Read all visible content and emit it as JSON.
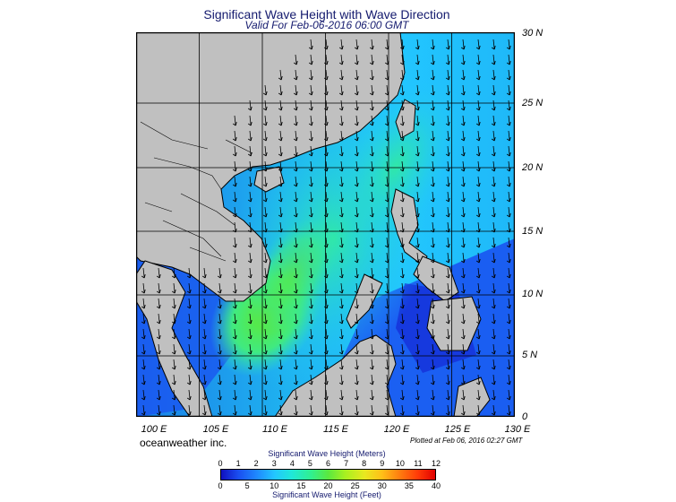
{
  "header": {
    "title": "Significant Wave Height with Wave Direction",
    "subtitle": "Valid For Feb-06-2016 06:00 GMT"
  },
  "map": {
    "lon_range": [
      100,
      130
    ],
    "lat_range": [
      0,
      30
    ],
    "lat_labels": [
      "30 N",
      "25 N",
      "20 N",
      "15 N",
      "10 N",
      "5 N",
      "0"
    ],
    "lon_labels": [
      "100 E",
      "105 E",
      "110 E",
      "115 E",
      "120 E",
      "125 E",
      "130 E"
    ],
    "land_color": "#c0c0c0",
    "wave_direction": "southwest (arrows point from NE toward SW)"
  },
  "footer": {
    "credit": "oceanweather inc.",
    "plotted": "Plotted at Feb 06, 2016 02:27 GMT"
  },
  "legend": {
    "title_top": "Significant Wave Height (Meters)",
    "title_bottom": "Significant Wave Height (Feet)",
    "meters_ticks": [
      "0",
      "1",
      "2",
      "3",
      "4",
      "5",
      "6",
      "7",
      "8",
      "9",
      "10",
      "11",
      "12"
    ],
    "feet_ticks": [
      "0",
      "5",
      "10",
      "15",
      "20",
      "25",
      "30",
      "35",
      "40"
    ]
  },
  "chart_data": {
    "type": "heatmap",
    "title": "Significant Wave Height with Wave Direction",
    "subtitle": "Valid For Feb-06-2016 06:00 GMT",
    "units": "Meters",
    "scale_range": [
      0,
      12
    ],
    "x_range_deg_e": [
      100,
      130
    ],
    "y_range_deg_n": [
      0,
      30
    ],
    "max_region_value_m": 5,
    "max_region_location": "central South China Sea near 9N 110E"
  }
}
